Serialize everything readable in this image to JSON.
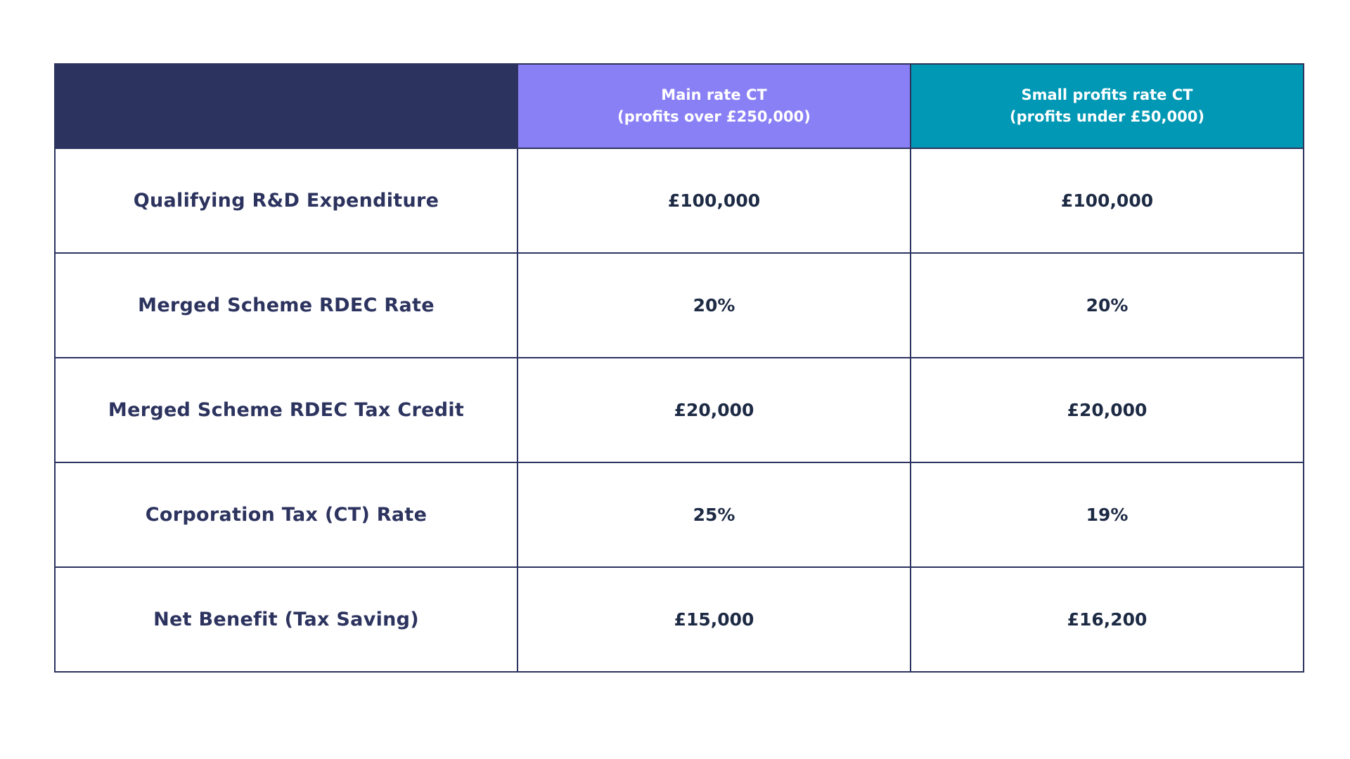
{
  "table": {
    "columns": [
      {
        "line1": "",
        "line2": ""
      },
      {
        "line1": "Main rate CT",
        "line2": "(profits over £250,000)"
      },
      {
        "line1": "Small profits rate CT",
        "line2": "(profits under £50,000)"
      }
    ],
    "rows": [
      {
        "label": "Qualifying R&D Expenditure",
        "main": "£100,000",
        "small": "£100,000"
      },
      {
        "label": "Merged Scheme RDEC Rate",
        "main": "20%",
        "small": "20%"
      },
      {
        "label": "Merged Scheme RDEC Tax Credit",
        "main": "£20,000",
        "small": "£20,000"
      },
      {
        "label": "Corporation Tax (CT) Rate",
        "main": "25%",
        "small": "19%"
      },
      {
        "label": "Net Benefit (Tax Saving)",
        "main": "£15,000",
        "small": "£16,200"
      }
    ]
  },
  "colors": {
    "navy": "#2c335e",
    "purple": "#8a80f5",
    "teal": "#0098b4"
  }
}
